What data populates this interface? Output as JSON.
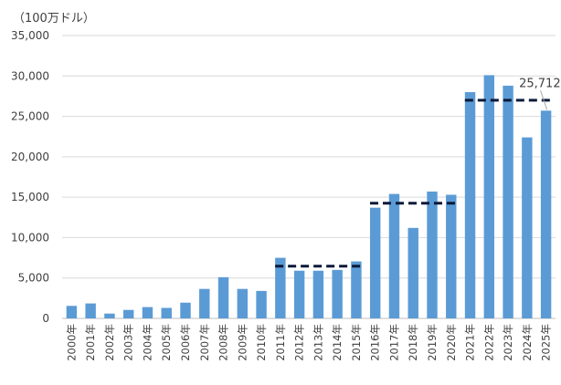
{
  "chart_data": {
    "type": "bar",
    "unit_label": "（100万ドル）",
    "categories": [
      "2000年",
      "2001年",
      "2002年",
      "2003年",
      "2004年",
      "2005年",
      "2006年",
      "2007年",
      "2008年",
      "2009年",
      "2010年",
      "2011年",
      "2012年",
      "2013年",
      "2014年",
      "2015年",
      "2016年",
      "2017年",
      "2018年",
      "2019年",
      "2020年",
      "2021年",
      "2022年",
      "2023年",
      "2024年",
      "2025年"
    ],
    "values": [
      1550,
      1850,
      600,
      1050,
      1400,
      1300,
      1950,
      3650,
      5100,
      3650,
      3400,
      7500,
      5900,
      5900,
      6000,
      7050,
      13700,
      15400,
      11200,
      15700,
      15300,
      28000,
      30100,
      28800,
      22400,
      25712
    ],
    "ylim": [
      0,
      35000
    ],
    "yticks": [
      0,
      5000,
      10000,
      15000,
      20000,
      25000,
      30000,
      35000
    ],
    "ytick_labels": [
      "0",
      "5,000",
      "10,000",
      "15,000",
      "20,000",
      "25,000",
      "30,000",
      "35,000"
    ],
    "grid": true,
    "bar_color": "#5b9bd5",
    "averages": [
      {
        "from": "2011年",
        "to": "2015年",
        "value": 6470
      },
      {
        "from": "2016年",
        "to": "2020年",
        "value": 14260
      },
      {
        "from": "2021年",
        "to": "2025年",
        "value": 27000
      }
    ],
    "average_line_color": "#0b1a3a",
    "annotation": {
      "category": "2025年",
      "text": "25,712"
    }
  }
}
